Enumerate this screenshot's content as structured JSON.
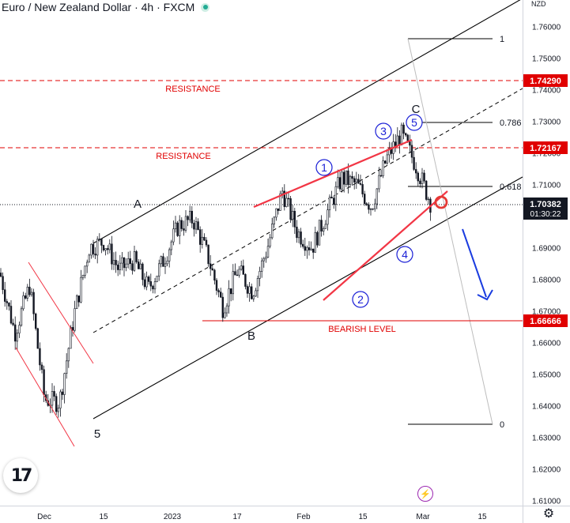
{
  "header": {
    "title": "Euro / New Zealand Dollar · 4h · FXCM",
    "status_color": "#22ab94"
  },
  "price_axis": {
    "currency": "NZD",
    "ticks": [
      "1.76000",
      "1.75000",
      "1.74000",
      "1.73000",
      "1.72000",
      "1.71000",
      "1.70000",
      "1.69000",
      "1.68000",
      "1.67000",
      "1.66000",
      "1.65000",
      "1.64000",
      "1.63000",
      "1.62000",
      "1.61000"
    ]
  },
  "time_axis": {
    "labels": [
      "Dec",
      "15",
      "2023",
      "17",
      "Feb",
      "15",
      "Mar",
      "15"
    ]
  },
  "price_tags": [
    {
      "label": "1.74290",
      "color": "#e00000"
    },
    {
      "label": "1.72167",
      "color": "#e00000"
    },
    {
      "label": "1.66666",
      "color": "#e00000"
    }
  ],
  "last_price": {
    "value": "1.70382",
    "countdown": "01:30:22"
  },
  "annotations": {
    "resistance_1": "RESISTANCE",
    "resistance_2": "RESISTANCE",
    "bearish": "BEARISH LEVEL",
    "wave_A": "A",
    "wave_B": "B",
    "wave_C": "C",
    "wave_5_low": "5",
    "fib_1": "1",
    "fib_786": "0.786",
    "fib_618": "0.618",
    "fib_0": "0",
    "circled": [
      "1",
      "2",
      "3",
      "4",
      "5"
    ]
  },
  "chart_data": {
    "type": "candlestick",
    "title": "Euro / New Zealand Dollar · 4h · FXCM",
    "ylabel": "NZD",
    "ylim": [
      1.606,
      1.765
    ],
    "x_ticks": [
      "Dec",
      "15",
      "2023",
      "17",
      "Feb",
      "15",
      "Mar",
      "15"
    ],
    "price_path": [
      [
        "start",
        1.682
      ],
      [
        "Dec 1",
        1.663
      ],
      [
        "Dec 5",
        1.678
      ],
      [
        "Dec 8",
        1.642
      ],
      [
        "Dec 12",
        1.641
      ],
      [
        "Dec 14",
        1.669
      ],
      [
        "Dec 17",
        1.69
      ],
      [
        "Dec 21",
        1.692
      ],
      [
        "Dec 27",
        1.683
      ],
      [
        "Jan 1",
        1.686
      ],
      [
        "Jan 5",
        1.677
      ],
      [
        "Jan 9",
        1.686
      ],
      [
        "Jan 11",
        1.697
      ],
      [
        "Jan 14",
        1.699
      ],
      [
        "Jan 18",
        1.687
      ],
      [
        "Jan 21",
        1.671
      ],
      [
        "Jan 25",
        1.683
      ],
      [
        "Jan 28",
        1.676
      ],
      [
        "Feb 1",
        1.69
      ],
      [
        "Feb 3",
        1.708
      ],
      [
        "Feb 7",
        1.695
      ],
      [
        "Feb 10",
        1.69
      ],
      [
        "Feb 13",
        1.701
      ],
      [
        "Feb 17",
        1.712
      ],
      [
        "Feb 21",
        1.71
      ],
      [
        "Feb 24",
        1.703
      ],
      [
        "Feb 26",
        1.718
      ],
      [
        "Feb 28",
        1.726
      ],
      [
        "Mar 1",
        1.716
      ],
      [
        "Mar 2",
        1.704
      ]
    ],
    "horizontal_levels": [
      {
        "value": 1.7429,
        "label": "RESISTANCE",
        "style": "dashed",
        "color": "#e00000"
      },
      {
        "value": 1.72167,
        "label": "RESISTANCE",
        "style": "dashed",
        "color": "#e00000"
      },
      {
        "value": 1.66666,
        "label": "BEARISH LEVEL",
        "style": "solid",
        "color": "#e00000"
      }
    ],
    "fibonacci": [
      {
        "ratio": "1",
        "value": 1.7555
      },
      {
        "ratio": "0.786",
        "value": 1.7295
      },
      {
        "ratio": "0.618",
        "value": 1.709
      },
      {
        "ratio": "0",
        "value": 1.6345
      }
    ],
    "last_price": 1.70382,
    "grid": false
  },
  "colors": {
    "candle": "#131722",
    "red": "#e00000",
    "drawing_red": "#f23645",
    "wave_blue": "#1a1fd6",
    "arrow_blue": "#1a3ce0",
    "axis_text": "#131722",
    "fib_line": "#000000"
  }
}
